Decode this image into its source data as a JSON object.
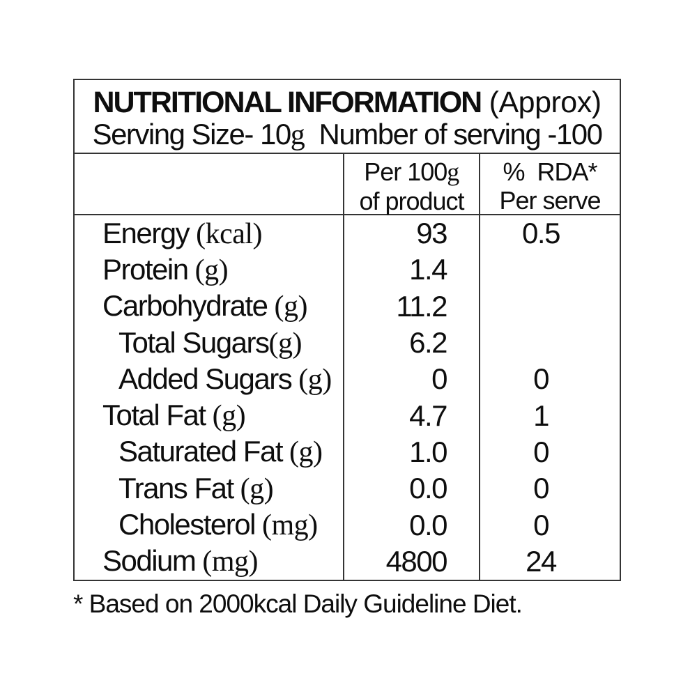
{
  "label": {
    "title_bold": "NUTRITIONAL INFORMATION",
    "title_normal": " (Approx)",
    "serving_prefix": "Serving Size- 10",
    "serving_unit": "g",
    "serving_suffix": "  Number of serving -100"
  },
  "columns": {
    "per100g_line1_prefix": "Per 100",
    "per100g_line1_unit": "g",
    "per100g_line2": "of product",
    "rda_line1": "%  RDA*",
    "rda_line2": "Per serve"
  },
  "rows": [
    {
      "name": "Energy",
      "unit": " (kcal)",
      "per_100g": "93",
      "rda_per_serve": "0.5"
    },
    {
      "name": "Protein",
      "unit": " (g)",
      "per_100g": "1.4",
      "rda_per_serve": ""
    },
    {
      "name": "Carbohydrate",
      "unit": " (g)",
      "per_100g": "11.2",
      "rda_per_serve": ""
    },
    {
      "name": "Total Sugars",
      "unit": "(g)",
      "per_100g": "6.2",
      "rda_per_serve": ""
    },
    {
      "name": "Added Sugars",
      "unit": " (g)",
      "per_100g": "0",
      "rda_per_serve": "0"
    },
    {
      "name": "Total Fat",
      "unit": " (g)",
      "per_100g": "4.7",
      "rda_per_serve": "1"
    },
    {
      "name": "Saturated Fat",
      "unit": " (g)",
      "per_100g": "1.0",
      "rda_per_serve": "0"
    },
    {
      "name": "Trans Fat",
      "unit": " (g)",
      "per_100g": "0.0",
      "rda_per_serve": "0"
    },
    {
      "name": "Cholesterol",
      "unit": " (mg)",
      "per_100g": "0.0",
      "rda_per_serve": "0"
    },
    {
      "name": "Sodium",
      "unit": " (mg)",
      "per_100g": "4800",
      "rda_per_serve": "24"
    }
  ],
  "footnote": "* Based on 2000kcal Daily Guideline Diet.",
  "colors": {
    "border": "#343434",
    "text": "#0e0e0e",
    "background": "#ffffff"
  }
}
